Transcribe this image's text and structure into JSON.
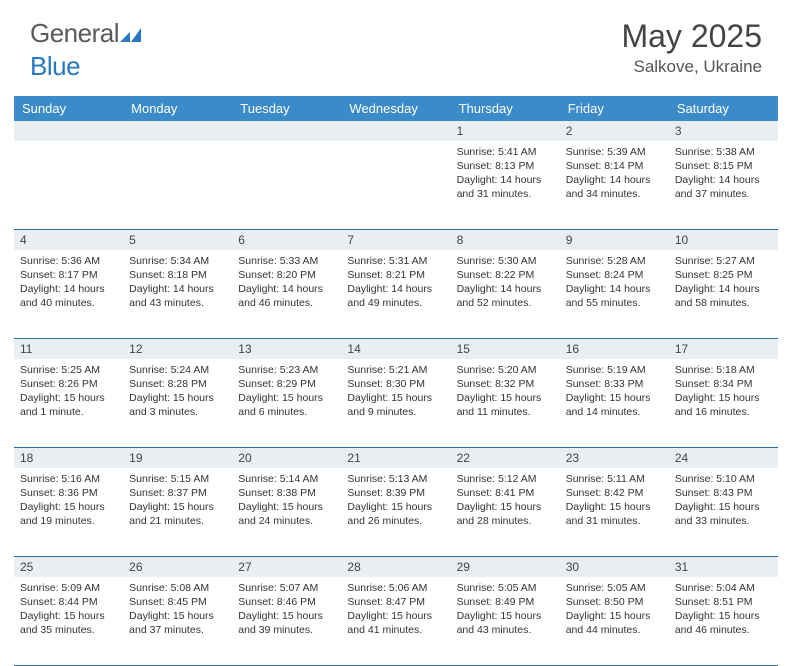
{
  "logo": {
    "text_part1": "General",
    "text_part2": "Blue"
  },
  "title": "May 2025",
  "location": "Salkove, Ukraine",
  "colors": {
    "header_bg": "#3b8bc9",
    "header_text": "#ffffff",
    "date_row_bg": "#e9eef3",
    "week_border": "#2a6fa8",
    "body_text": "#333333",
    "logo_gray": "#5a5a5a",
    "logo_blue": "#2878bd"
  },
  "day_names": [
    "Sunday",
    "Monday",
    "Tuesday",
    "Wednesday",
    "Thursday",
    "Friday",
    "Saturday"
  ],
  "weeks": [
    {
      "dates": [
        "",
        "",
        "",
        "",
        "1",
        "2",
        "3"
      ],
      "cells": [
        null,
        null,
        null,
        null,
        {
          "sunrise": "Sunrise: 5:41 AM",
          "sunset": "Sunset: 8:13 PM",
          "daylight": "Daylight: 14 hours and 31 minutes."
        },
        {
          "sunrise": "Sunrise: 5:39 AM",
          "sunset": "Sunset: 8:14 PM",
          "daylight": "Daylight: 14 hours and 34 minutes."
        },
        {
          "sunrise": "Sunrise: 5:38 AM",
          "sunset": "Sunset: 8:15 PM",
          "daylight": "Daylight: 14 hours and 37 minutes."
        }
      ]
    },
    {
      "dates": [
        "4",
        "5",
        "6",
        "7",
        "8",
        "9",
        "10"
      ],
      "cells": [
        {
          "sunrise": "Sunrise: 5:36 AM",
          "sunset": "Sunset: 8:17 PM",
          "daylight": "Daylight: 14 hours and 40 minutes."
        },
        {
          "sunrise": "Sunrise: 5:34 AM",
          "sunset": "Sunset: 8:18 PM",
          "daylight": "Daylight: 14 hours and 43 minutes."
        },
        {
          "sunrise": "Sunrise: 5:33 AM",
          "sunset": "Sunset: 8:20 PM",
          "daylight": "Daylight: 14 hours and 46 minutes."
        },
        {
          "sunrise": "Sunrise: 5:31 AM",
          "sunset": "Sunset: 8:21 PM",
          "daylight": "Daylight: 14 hours and 49 minutes."
        },
        {
          "sunrise": "Sunrise: 5:30 AM",
          "sunset": "Sunset: 8:22 PM",
          "daylight": "Daylight: 14 hours and 52 minutes."
        },
        {
          "sunrise": "Sunrise: 5:28 AM",
          "sunset": "Sunset: 8:24 PM",
          "daylight": "Daylight: 14 hours and 55 minutes."
        },
        {
          "sunrise": "Sunrise: 5:27 AM",
          "sunset": "Sunset: 8:25 PM",
          "daylight": "Daylight: 14 hours and 58 minutes."
        }
      ]
    },
    {
      "dates": [
        "11",
        "12",
        "13",
        "14",
        "15",
        "16",
        "17"
      ],
      "cells": [
        {
          "sunrise": "Sunrise: 5:25 AM",
          "sunset": "Sunset: 8:26 PM",
          "daylight": "Daylight: 15 hours and 1 minute."
        },
        {
          "sunrise": "Sunrise: 5:24 AM",
          "sunset": "Sunset: 8:28 PM",
          "daylight": "Daylight: 15 hours and 3 minutes."
        },
        {
          "sunrise": "Sunrise: 5:23 AM",
          "sunset": "Sunset: 8:29 PM",
          "daylight": "Daylight: 15 hours and 6 minutes."
        },
        {
          "sunrise": "Sunrise: 5:21 AM",
          "sunset": "Sunset: 8:30 PM",
          "daylight": "Daylight: 15 hours and 9 minutes."
        },
        {
          "sunrise": "Sunrise: 5:20 AM",
          "sunset": "Sunset: 8:32 PM",
          "daylight": "Daylight: 15 hours and 11 minutes."
        },
        {
          "sunrise": "Sunrise: 5:19 AM",
          "sunset": "Sunset: 8:33 PM",
          "daylight": "Daylight: 15 hours and 14 minutes."
        },
        {
          "sunrise": "Sunrise: 5:18 AM",
          "sunset": "Sunset: 8:34 PM",
          "daylight": "Daylight: 15 hours and 16 minutes."
        }
      ]
    },
    {
      "dates": [
        "18",
        "19",
        "20",
        "21",
        "22",
        "23",
        "24"
      ],
      "cells": [
        {
          "sunrise": "Sunrise: 5:16 AM",
          "sunset": "Sunset: 8:36 PM",
          "daylight": "Daylight: 15 hours and 19 minutes."
        },
        {
          "sunrise": "Sunrise: 5:15 AM",
          "sunset": "Sunset: 8:37 PM",
          "daylight": "Daylight: 15 hours and 21 minutes."
        },
        {
          "sunrise": "Sunrise: 5:14 AM",
          "sunset": "Sunset: 8:38 PM",
          "daylight": "Daylight: 15 hours and 24 minutes."
        },
        {
          "sunrise": "Sunrise: 5:13 AM",
          "sunset": "Sunset: 8:39 PM",
          "daylight": "Daylight: 15 hours and 26 minutes."
        },
        {
          "sunrise": "Sunrise: 5:12 AM",
          "sunset": "Sunset: 8:41 PM",
          "daylight": "Daylight: 15 hours and 28 minutes."
        },
        {
          "sunrise": "Sunrise: 5:11 AM",
          "sunset": "Sunset: 8:42 PM",
          "daylight": "Daylight: 15 hours and 31 minutes."
        },
        {
          "sunrise": "Sunrise: 5:10 AM",
          "sunset": "Sunset: 8:43 PM",
          "daylight": "Daylight: 15 hours and 33 minutes."
        }
      ]
    },
    {
      "dates": [
        "25",
        "26",
        "27",
        "28",
        "29",
        "30",
        "31"
      ],
      "cells": [
        {
          "sunrise": "Sunrise: 5:09 AM",
          "sunset": "Sunset: 8:44 PM",
          "daylight": "Daylight: 15 hours and 35 minutes."
        },
        {
          "sunrise": "Sunrise: 5:08 AM",
          "sunset": "Sunset: 8:45 PM",
          "daylight": "Daylight: 15 hours and 37 minutes."
        },
        {
          "sunrise": "Sunrise: 5:07 AM",
          "sunset": "Sunset: 8:46 PM",
          "daylight": "Daylight: 15 hours and 39 minutes."
        },
        {
          "sunrise": "Sunrise: 5:06 AM",
          "sunset": "Sunset: 8:47 PM",
          "daylight": "Daylight: 15 hours and 41 minutes."
        },
        {
          "sunrise": "Sunrise: 5:05 AM",
          "sunset": "Sunset: 8:49 PM",
          "daylight": "Daylight: 15 hours and 43 minutes."
        },
        {
          "sunrise": "Sunrise: 5:05 AM",
          "sunset": "Sunset: 8:50 PM",
          "daylight": "Daylight: 15 hours and 44 minutes."
        },
        {
          "sunrise": "Sunrise: 5:04 AM",
          "sunset": "Sunset: 8:51 PM",
          "daylight": "Daylight: 15 hours and 46 minutes."
        }
      ]
    }
  ]
}
